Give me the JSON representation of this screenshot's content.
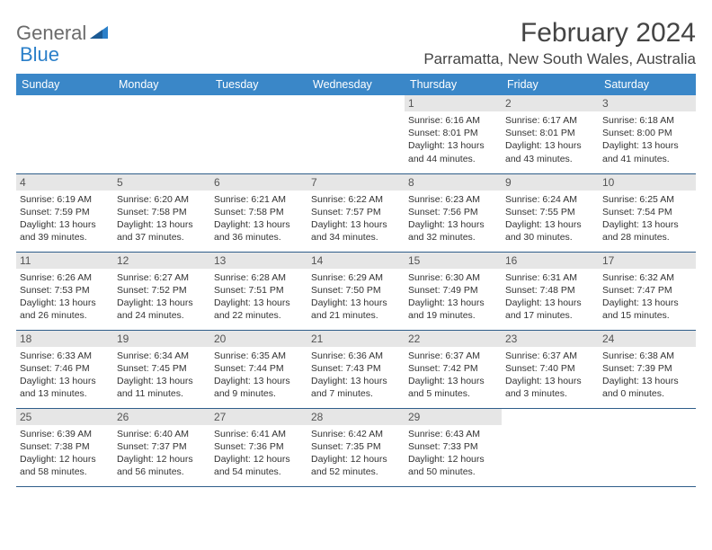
{
  "logo": {
    "word1": "General",
    "word2": "Blue"
  },
  "title": "February 2024",
  "location": "Parramatta, New South Wales, Australia",
  "colors": {
    "header_bg": "#3a87c8",
    "header_text": "#ffffff",
    "row_border": "#2f5e8a",
    "daynum_bg": "#e6e6e6",
    "logo_gray": "#6b6b6b",
    "logo_blue": "#2a7fc9"
  },
  "weekdays": [
    "Sunday",
    "Monday",
    "Tuesday",
    "Wednesday",
    "Thursday",
    "Friday",
    "Saturday"
  ],
  "weeks": [
    [
      {
        "n": "",
        "l1": "",
        "l2": "",
        "l3": ""
      },
      {
        "n": "",
        "l1": "",
        "l2": "",
        "l3": ""
      },
      {
        "n": "",
        "l1": "",
        "l2": "",
        "l3": ""
      },
      {
        "n": "",
        "l1": "",
        "l2": "",
        "l3": ""
      },
      {
        "n": "1",
        "l1": "Sunrise: 6:16 AM",
        "l2": "Sunset: 8:01 PM",
        "l3": "Daylight: 13 hours and 44 minutes."
      },
      {
        "n": "2",
        "l1": "Sunrise: 6:17 AM",
        "l2": "Sunset: 8:01 PM",
        "l3": "Daylight: 13 hours and 43 minutes."
      },
      {
        "n": "3",
        "l1": "Sunrise: 6:18 AM",
        "l2": "Sunset: 8:00 PM",
        "l3": "Daylight: 13 hours and 41 minutes."
      }
    ],
    [
      {
        "n": "4",
        "l1": "Sunrise: 6:19 AM",
        "l2": "Sunset: 7:59 PM",
        "l3": "Daylight: 13 hours and 39 minutes."
      },
      {
        "n": "5",
        "l1": "Sunrise: 6:20 AM",
        "l2": "Sunset: 7:58 PM",
        "l3": "Daylight: 13 hours and 37 minutes."
      },
      {
        "n": "6",
        "l1": "Sunrise: 6:21 AM",
        "l2": "Sunset: 7:58 PM",
        "l3": "Daylight: 13 hours and 36 minutes."
      },
      {
        "n": "7",
        "l1": "Sunrise: 6:22 AM",
        "l2": "Sunset: 7:57 PM",
        "l3": "Daylight: 13 hours and 34 minutes."
      },
      {
        "n": "8",
        "l1": "Sunrise: 6:23 AM",
        "l2": "Sunset: 7:56 PM",
        "l3": "Daylight: 13 hours and 32 minutes."
      },
      {
        "n": "9",
        "l1": "Sunrise: 6:24 AM",
        "l2": "Sunset: 7:55 PM",
        "l3": "Daylight: 13 hours and 30 minutes."
      },
      {
        "n": "10",
        "l1": "Sunrise: 6:25 AM",
        "l2": "Sunset: 7:54 PM",
        "l3": "Daylight: 13 hours and 28 minutes."
      }
    ],
    [
      {
        "n": "11",
        "l1": "Sunrise: 6:26 AM",
        "l2": "Sunset: 7:53 PM",
        "l3": "Daylight: 13 hours and 26 minutes."
      },
      {
        "n": "12",
        "l1": "Sunrise: 6:27 AM",
        "l2": "Sunset: 7:52 PM",
        "l3": "Daylight: 13 hours and 24 minutes."
      },
      {
        "n": "13",
        "l1": "Sunrise: 6:28 AM",
        "l2": "Sunset: 7:51 PM",
        "l3": "Daylight: 13 hours and 22 minutes."
      },
      {
        "n": "14",
        "l1": "Sunrise: 6:29 AM",
        "l2": "Sunset: 7:50 PM",
        "l3": "Daylight: 13 hours and 21 minutes."
      },
      {
        "n": "15",
        "l1": "Sunrise: 6:30 AM",
        "l2": "Sunset: 7:49 PM",
        "l3": "Daylight: 13 hours and 19 minutes."
      },
      {
        "n": "16",
        "l1": "Sunrise: 6:31 AM",
        "l2": "Sunset: 7:48 PM",
        "l3": "Daylight: 13 hours and 17 minutes."
      },
      {
        "n": "17",
        "l1": "Sunrise: 6:32 AM",
        "l2": "Sunset: 7:47 PM",
        "l3": "Daylight: 13 hours and 15 minutes."
      }
    ],
    [
      {
        "n": "18",
        "l1": "Sunrise: 6:33 AM",
        "l2": "Sunset: 7:46 PM",
        "l3": "Daylight: 13 hours and 13 minutes."
      },
      {
        "n": "19",
        "l1": "Sunrise: 6:34 AM",
        "l2": "Sunset: 7:45 PM",
        "l3": "Daylight: 13 hours and 11 minutes."
      },
      {
        "n": "20",
        "l1": "Sunrise: 6:35 AM",
        "l2": "Sunset: 7:44 PM",
        "l3": "Daylight: 13 hours and 9 minutes."
      },
      {
        "n": "21",
        "l1": "Sunrise: 6:36 AM",
        "l2": "Sunset: 7:43 PM",
        "l3": "Daylight: 13 hours and 7 minutes."
      },
      {
        "n": "22",
        "l1": "Sunrise: 6:37 AM",
        "l2": "Sunset: 7:42 PM",
        "l3": "Daylight: 13 hours and 5 minutes."
      },
      {
        "n": "23",
        "l1": "Sunrise: 6:37 AM",
        "l2": "Sunset: 7:40 PM",
        "l3": "Daylight: 13 hours and 3 minutes."
      },
      {
        "n": "24",
        "l1": "Sunrise: 6:38 AM",
        "l2": "Sunset: 7:39 PM",
        "l3": "Daylight: 13 hours and 0 minutes."
      }
    ],
    [
      {
        "n": "25",
        "l1": "Sunrise: 6:39 AM",
        "l2": "Sunset: 7:38 PM",
        "l3": "Daylight: 12 hours and 58 minutes."
      },
      {
        "n": "26",
        "l1": "Sunrise: 6:40 AM",
        "l2": "Sunset: 7:37 PM",
        "l3": "Daylight: 12 hours and 56 minutes."
      },
      {
        "n": "27",
        "l1": "Sunrise: 6:41 AM",
        "l2": "Sunset: 7:36 PM",
        "l3": "Daylight: 12 hours and 54 minutes."
      },
      {
        "n": "28",
        "l1": "Sunrise: 6:42 AM",
        "l2": "Sunset: 7:35 PM",
        "l3": "Daylight: 12 hours and 52 minutes."
      },
      {
        "n": "29",
        "l1": "Sunrise: 6:43 AM",
        "l2": "Sunset: 7:33 PM",
        "l3": "Daylight: 12 hours and 50 minutes."
      },
      {
        "n": "",
        "l1": "",
        "l2": "",
        "l3": ""
      },
      {
        "n": "",
        "l1": "",
        "l2": "",
        "l3": ""
      }
    ]
  ]
}
